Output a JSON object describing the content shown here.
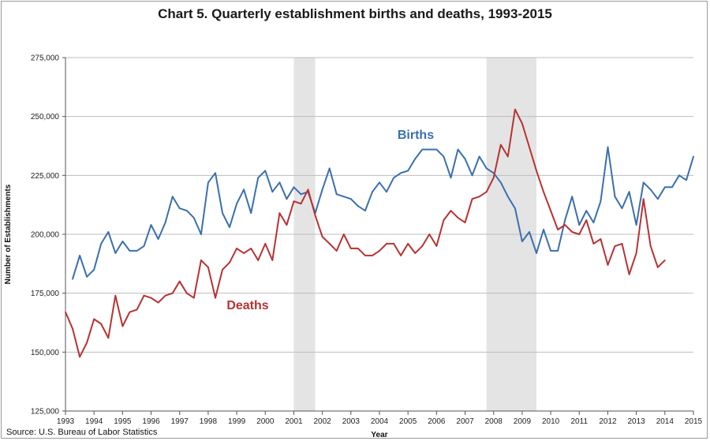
{
  "chart_data": {
    "type": "line",
    "title": "Chart 5. Quarterly establishment births and deaths, 1993-2015",
    "xlabel": "Year",
    "ylabel": "Number of Establishments",
    "source": "Source: U.S. Bureau of Labor Statistics",
    "x_ticks": [
      "1993",
      "1994",
      "1995",
      "1996",
      "1997",
      "1998",
      "1999",
      "2000",
      "2001",
      "2002",
      "2003",
      "2004",
      "2005",
      "2006",
      "2007",
      "2008",
      "2009",
      "2010",
      "2011",
      "2012",
      "2013",
      "2014",
      "2015"
    ],
    "y_ticks": [
      "125,000",
      "150,000",
      "175,000",
      "200,000",
      "225,000",
      "250,000",
      "275,000"
    ],
    "xlim": [
      1993,
      2015
    ],
    "ylim": [
      125000,
      275000
    ],
    "recession_shading": [
      [
        2001.0,
        2001.75
      ],
      [
        2007.75,
        2009.5
      ]
    ],
    "series": [
      {
        "name": "Births",
        "color": "#3a6fb0",
        "start": 1993.25,
        "values": [
          181000,
          191000,
          182000,
          185000,
          196000,
          201000,
          192000,
          197000,
          193000,
          193000,
          195000,
          204000,
          198000,
          205000,
          216000,
          211000,
          210000,
          207000,
          200000,
          222000,
          226000,
          209000,
          203000,
          213000,
          219000,
          209000,
          224000,
          227000,
          218000,
          222000,
          215000,
          220000,
          217000,
          218000,
          209000,
          219000,
          228000,
          217000,
          216000,
          215000,
          212000,
          210000,
          218000,
          222000,
          218000,
          224000,
          226000,
          227000,
          232000,
          236000,
          236000,
          236000,
          233000,
          224000,
          236000,
          232000,
          225000,
          233000,
          228000,
          226000,
          222000,
          216000,
          211000,
          197000,
          201000,
          192000,
          202000,
          193000,
          193000,
          206000,
          216000,
          204000,
          210000,
          205000,
          214000,
          237000,
          216000,
          211000,
          218000,
          204000,
          222000,
          219000,
          215000,
          220000,
          220000,
          225000,
          223000,
          233000
        ]
      },
      {
        "name": "Deaths",
        "color": "#b83232",
        "start": 1993.0,
        "values": [
          167000,
          160000,
          148000,
          154000,
          164000,
          162000,
          156000,
          174000,
          161000,
          167000,
          168000,
          174000,
          173000,
          171000,
          174000,
          175000,
          180000,
          175000,
          173000,
          189000,
          186000,
          173000,
          185000,
          188000,
          194000,
          192000,
          194000,
          189000,
          196000,
          189000,
          209000,
          204000,
          214000,
          213000,
          219000,
          208000,
          199000,
          196000,
          193000,
          200000,
          194000,
          194000,
          191000,
          191000,
          193000,
          196000,
          196000,
          191000,
          196000,
          192000,
          195000,
          200000,
          195000,
          206000,
          210000,
          207000,
          205000,
          215000,
          216000,
          218000,
          224000,
          238000,
          233000,
          253000,
          247000,
          237000,
          227000,
          218000,
          210000,
          202000,
          204000,
          201000,
          200000,
          206000,
          196000,
          198000,
          187000,
          195000,
          196000,
          183000,
          192000,
          215000,
          195000,
          186000,
          189000
        ]
      }
    ]
  }
}
